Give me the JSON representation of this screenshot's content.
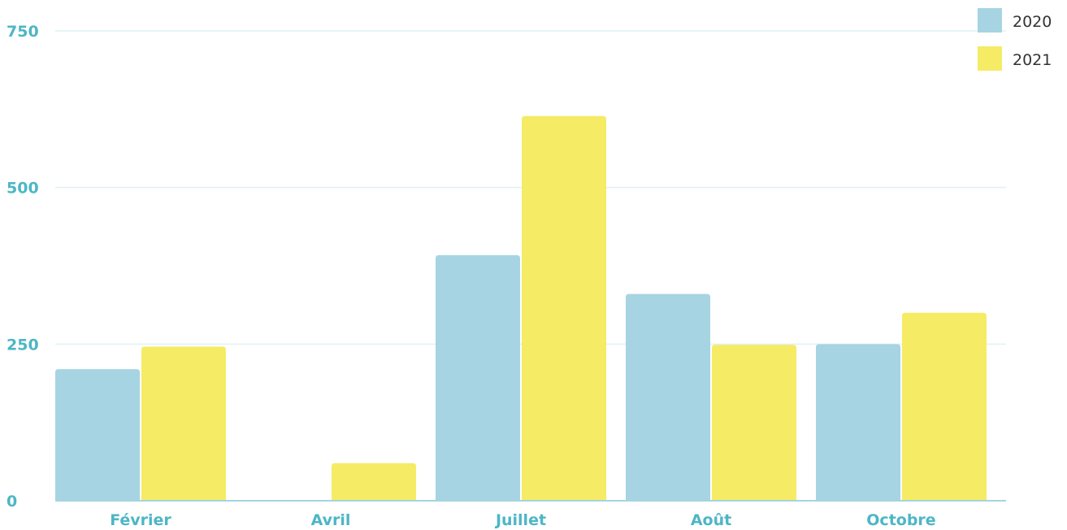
{
  "chart_data": {
    "type": "bar",
    "categories": [
      "Février",
      "Avril",
      "Juillet",
      "Août",
      "Octobre"
    ],
    "series": [
      {
        "name": "2020",
        "values": [
          210,
          0,
          392,
          330,
          250
        ],
        "color": "#a6d4e2"
      },
      {
        "name": "2021",
        "values": [
          246,
          60,
          614,
          249,
          300
        ],
        "color": "#f5eb65"
      }
    ],
    "yticks": [
      "0",
      "250",
      "500",
      "750"
    ],
    "ylim": [
      0,
      750
    ],
    "grid": true,
    "legend_position": "top-right",
    "xlabel": "",
    "ylabel": "",
    "title": ""
  }
}
